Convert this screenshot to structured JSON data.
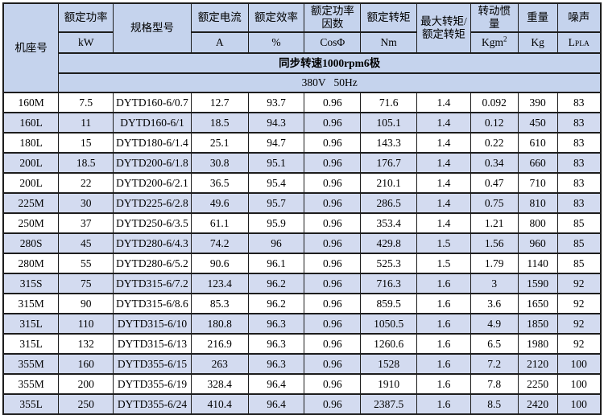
{
  "colors": {
    "page_bg": "#ffffff",
    "header_bg": "#c5d3ed",
    "row_alt_bg": "#d3dbf0",
    "row_bg": "#ffffff",
    "border": "#1d1d1d",
    "text": "#000000"
  },
  "table": {
    "columns": [
      {
        "id": "frame",
        "label": "机座号"
      },
      {
        "id": "rated_power",
        "label": "额定功率",
        "unit": "kW"
      },
      {
        "id": "model",
        "label": "规格型号"
      },
      {
        "id": "rated_current",
        "label": "额定电流",
        "unit": "A"
      },
      {
        "id": "rated_efficiency",
        "label": "额定效率",
        "unit": "%"
      },
      {
        "id": "power_factor",
        "label": "额定功率\n因数",
        "unit": "CosΦ"
      },
      {
        "id": "rated_torque",
        "label": "额定转矩",
        "unit": "Nm"
      },
      {
        "id": "max_torque_ratio",
        "label": "最大转矩/\n额定转矩"
      },
      {
        "id": "inertia",
        "label": "转动惯\n量",
        "unit_main": "Kgm",
        "unit_sup": "2"
      },
      {
        "id": "weight",
        "label": "重量",
        "unit": "Kg"
      },
      {
        "id": "noise",
        "label": "噪声",
        "unit_main": "L",
        "unit_sub": "PLA"
      }
    ],
    "banner": {
      "speed_line": "同步转速1000rpm6极",
      "supply_line": "380V   50Hz"
    },
    "rows": [
      [
        "160M",
        "7.5",
        "DYTD160-6/0.7",
        "12.7",
        "93.7",
        "0.96",
        "71.6",
        "1.4",
        "0.092",
        "390",
        "83"
      ],
      [
        "160L",
        "11",
        "DYTD160-6/1",
        "18.5",
        "94.3",
        "0.96",
        "105.1",
        "1.4",
        "0.12",
        "450",
        "83"
      ],
      [
        "180L",
        "15",
        "DYTD180-6/1.4",
        "25.1",
        "94.7",
        "0.96",
        "143.3",
        "1.4",
        "0.22",
        "610",
        "83"
      ],
      [
        "200L",
        "18.5",
        "DYTD200-6/1.8",
        "30.8",
        "95.1",
        "0.96",
        "176.7",
        "1.4",
        "0.34",
        "660",
        "83"
      ],
      [
        "200L",
        "22",
        "DYTD200-6/2.1",
        "36.5",
        "95.4",
        "0.96",
        "210.1",
        "1.4",
        "0.47",
        "710",
        "83"
      ],
      [
        "225M",
        "30",
        "DYTD225-6/2.8",
        "49.6",
        "95.7",
        "0.96",
        "286.5",
        "1.4",
        "0.75",
        "810",
        "83"
      ],
      [
        "250M",
        "37",
        "DYTD250-6/3.5",
        "61.1",
        "95.9",
        "0.96",
        "353.4",
        "1.4",
        "1.21",
        "800",
        "85"
      ],
      [
        "280S",
        "45",
        "DYTD280-6/4.3",
        "74.2",
        "96",
        "0.96",
        "429.8",
        "1.5",
        "1.56",
        "960",
        "85"
      ],
      [
        "280M",
        "55",
        "DYTD280-6/5.2",
        "90.6",
        "96.1",
        "0.96",
        "525.3",
        "1.5",
        "1.79",
        "1140",
        "85"
      ],
      [
        "315S",
        "75",
        "DYTD315-6/7.2",
        "123.4",
        "96.2",
        "0.96",
        "716.3",
        "1.6",
        "3",
        "1590",
        "92"
      ],
      [
        "315M",
        "90",
        "DYTD315-6/8.6",
        "85.3",
        "96.2",
        "0.96",
        "859.5",
        "1.6",
        "3.6",
        "1650",
        "92"
      ],
      [
        "315L",
        "110",
        "DYTD315-6/10",
        "180.8",
        "96.3",
        "0.96",
        "1050.5",
        "1.6",
        "4.9",
        "1850",
        "92"
      ],
      [
        "315L",
        "132",
        "DYTD315-6/13",
        "216.9",
        "96.3",
        "0.96",
        "1260.6",
        "1.6",
        "6.5",
        "1980",
        "92"
      ],
      [
        "355M",
        "160",
        "DYTD355-6/15",
        "263",
        "96.3",
        "0.96",
        "1528",
        "1.6",
        "7.2",
        "2120",
        "100"
      ],
      [
        "355M",
        "200",
        "DYTD355-6/19",
        "328.4",
        "96.4",
        "0.96",
        "1910",
        "1.6",
        "7.8",
        "2250",
        "100"
      ],
      [
        "355L",
        "250",
        "DYTD355-6/24",
        "410.4",
        "96.4",
        "0.96",
        "2387.5",
        "1.6",
        "8.5",
        "2420",
        "100"
      ]
    ]
  }
}
